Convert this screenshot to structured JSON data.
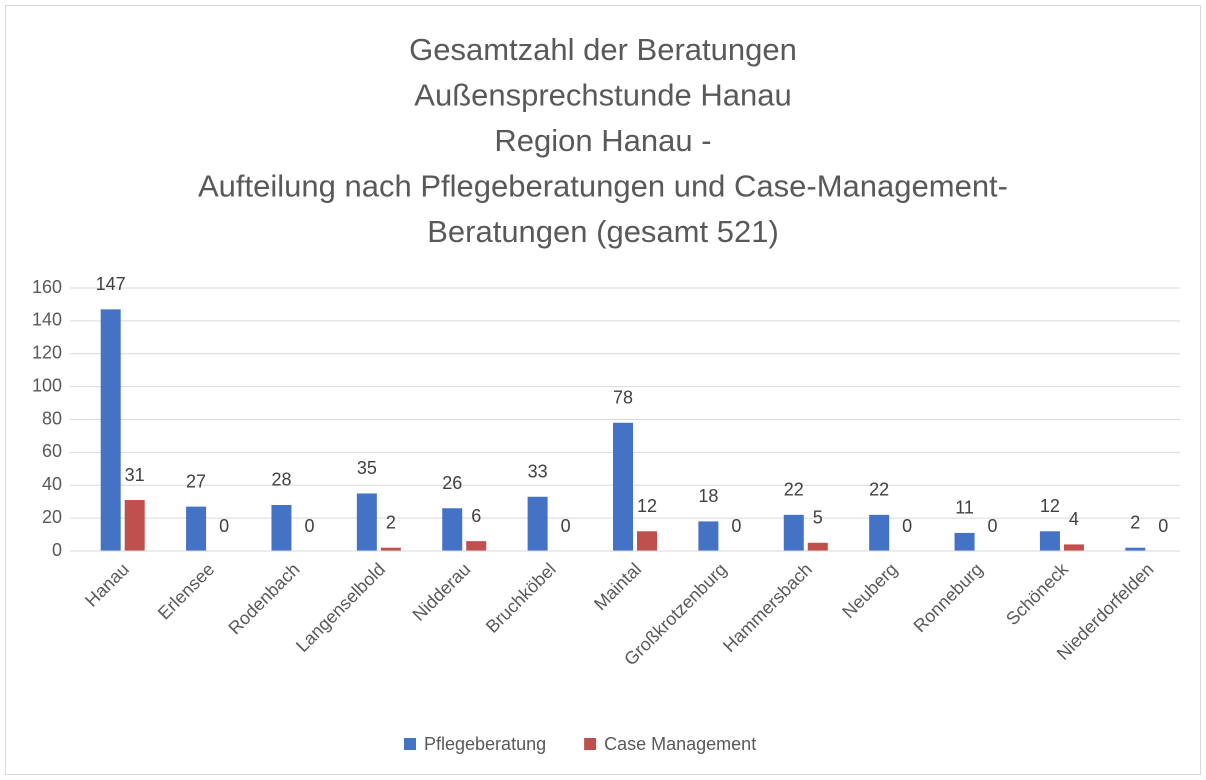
{
  "chart_data": {
    "type": "bar",
    "title": [
      "Gesamtzahl der Beratungen",
      "Außensprechstunde Hanau",
      "Region Hanau -",
      "Aufteilung nach Pflegeberatungen und Case-Management-",
      "Beratungen (gesamt 521)"
    ],
    "categories": [
      "Hanau",
      "Erlensee",
      "Rodenbach",
      "Langenselbold",
      "Nidderau",
      "Bruchköbel",
      "Maintal",
      "Großkrotzenburg",
      "Hammersbach",
      "Neuberg",
      "Ronneburg",
      "Schöneck",
      "Niederdorfelden"
    ],
    "series": [
      {
        "name": "Pflegeberatung",
        "color": "#4472c4",
        "values": [
          147,
          27,
          28,
          35,
          26,
          33,
          78,
          18,
          22,
          22,
          11,
          12,
          2
        ]
      },
      {
        "name": "Case Management",
        "color": "#c0504d",
        "values": [
          31,
          0,
          0,
          2,
          6,
          0,
          12,
          0,
          5,
          0,
          0,
          4,
          0
        ]
      }
    ],
    "ylim": [
      0,
      160
    ],
    "yticks": [
      0,
      20,
      40,
      60,
      80,
      100,
      120,
      140,
      160
    ],
    "grid": true,
    "legend": "bottom"
  }
}
